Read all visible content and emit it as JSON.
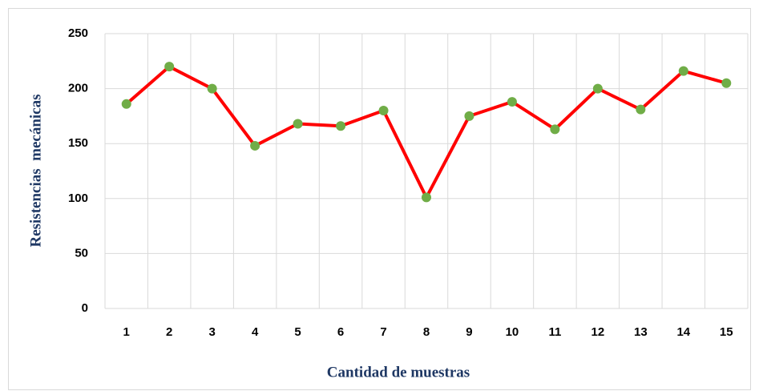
{
  "chart_data": {
    "type": "line",
    "x_label": "Cantidad de muestras",
    "y_label": "Resistencias  mecánicas",
    "categories": [
      "1",
      "2",
      "3",
      "4",
      "5",
      "6",
      "7",
      "8",
      "9",
      "10",
      "11",
      "12",
      "13",
      "14",
      "15"
    ],
    "series": [
      {
        "color": "#ff0000",
        "marker_color": "#70ad47",
        "values": [
          186,
          220,
          200,
          148,
          168,
          166,
          180,
          101,
          175,
          188,
          163,
          200,
          181,
          216,
          205
        ]
      }
    ],
    "ylim": [
      0,
      250
    ],
    "yticks": [
      0,
      50,
      100,
      150,
      200,
      250
    ],
    "grid": true
  }
}
